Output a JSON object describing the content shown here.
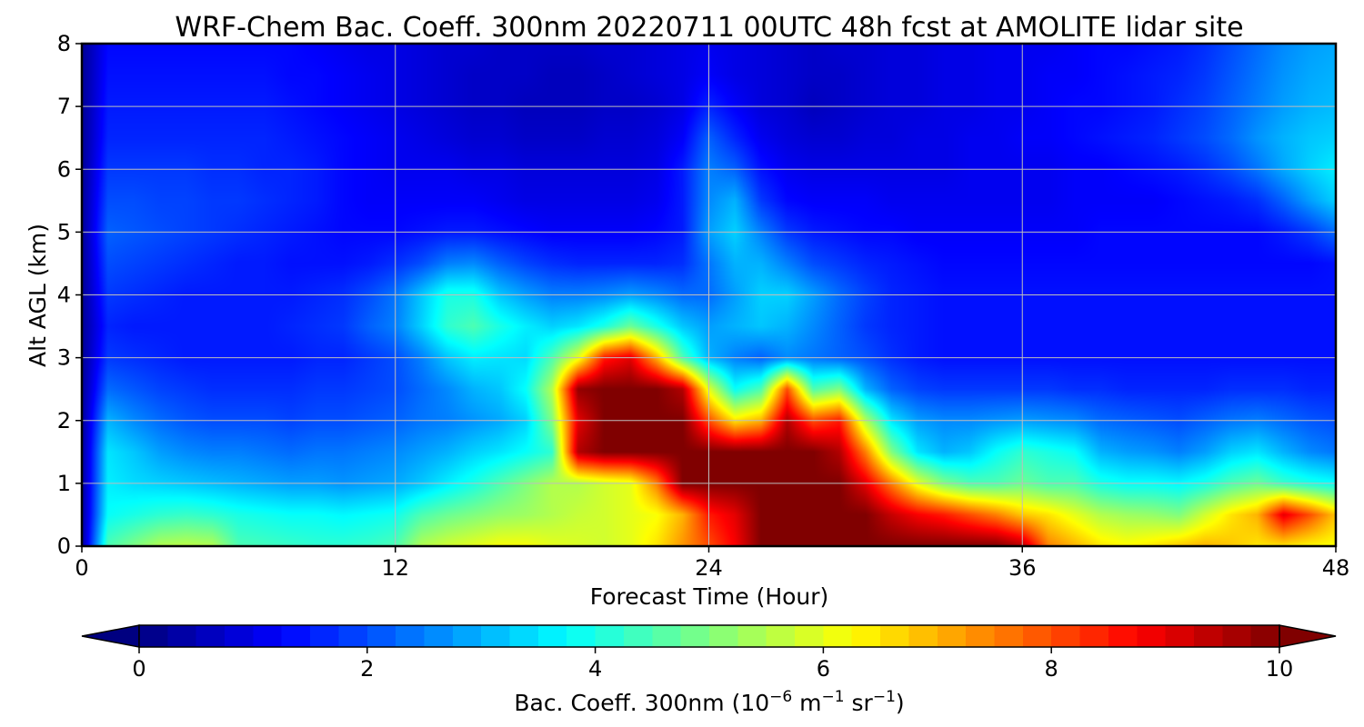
{
  "chart_data": {
    "type": "heatmap",
    "title": "WRF-Chem Bac. Coeff. 300nm  20220711 00UTC 48h fcst at AMOLITE lidar site",
    "xlabel": "Forecast Time (Hour)",
    "ylabel": "Alt AGL (km)",
    "xlim": [
      0,
      48
    ],
    "ylim": [
      0,
      8
    ],
    "xticks": [
      "0",
      "12",
      "24",
      "36",
      "48"
    ],
    "yticks": [
      "0",
      "1",
      "2",
      "3",
      "4",
      "5",
      "6",
      "7",
      "8"
    ],
    "grid": true,
    "colormap": "jet",
    "colorbar": {
      "orientation": "horizontal",
      "placement": "bottom",
      "range": [
        0,
        10
      ],
      "ticks": [
        "0",
        "2",
        "4",
        "6",
        "8",
        "10"
      ],
      "extend": "both",
      "label_main": "Bac. Coeff. 300nm  (10",
      "label_exp1": "−6",
      "label_mid": " m",
      "label_exp2": "−1",
      "label_mid2": " sr",
      "label_exp3": "−1",
      "label_end": ")"
    },
    "x_hours": [
      0,
      1,
      2,
      3,
      4,
      5,
      6,
      7,
      8,
      9,
      10,
      11,
      12,
      13,
      14,
      15,
      16,
      17,
      18,
      19,
      20,
      21,
      22,
      23,
      24,
      25,
      26,
      27,
      28,
      29,
      30,
      31,
      32,
      33,
      34,
      35,
      36,
      37,
      38,
      39,
      40,
      41,
      42,
      43,
      44,
      45,
      46,
      47,
      48
    ],
    "y_km": [
      0,
      0.5,
      1,
      1.5,
      2,
      2.5,
      3,
      3.5,
      4,
      4.5,
      5,
      5.5,
      6,
      6.5,
      7,
      7.5,
      8
    ],
    "values_by_altitude": [
      [
        0.2,
        4.5,
        5.0,
        5.5,
        5.6,
        5.5,
        4.5,
        4.4,
        4.3,
        4.2,
        4.2,
        4.3,
        4.5,
        5.5,
        5.8,
        6.0,
        6.2,
        6.2,
        6.0,
        5.9,
        5.8,
        6.0,
        6.5,
        7.3,
        8.0,
        8.8,
        10.0,
        10.0,
        10.0,
        10.0,
        10.0,
        10.0,
        10.0,
        10.0,
        10.0,
        10.0,
        9.5,
        7.5,
        7.0,
        6.5,
        6.3,
        6.5,
        6.8,
        7.0,
        6.8,
        6.5,
        6.5,
        6.3,
        6.2
      ],
      [
        0.2,
        3.8,
        4.0,
        4.2,
        4.3,
        4.2,
        4.0,
        3.9,
        3.8,
        3.8,
        3.7,
        3.8,
        3.9,
        4.5,
        4.8,
        5.0,
        5.2,
        5.3,
        5.5,
        5.7,
        5.8,
        6.0,
        6.2,
        7.0,
        8.5,
        9.0,
        10.0,
        10.0,
        10.0,
        10.0,
        10.0,
        9.3,
        8.8,
        8.5,
        8.0,
        7.5,
        6.8,
        6.5,
        6.0,
        5.5,
        5.3,
        5.2,
        5.0,
        5.8,
        6.5,
        7.0,
        9.0,
        8.0,
        6.8
      ],
      [
        0.2,
        3.6,
        3.4,
        3.3,
        3.2,
        3.1,
        3.0,
        2.9,
        2.8,
        2.8,
        2.7,
        2.8,
        2.9,
        3.2,
        3.6,
        4.0,
        4.5,
        5.0,
        5.5,
        5.5,
        5.8,
        6.0,
        7.5,
        10.0,
        10.0,
        10.0,
        10.0,
        10.0,
        10.0,
        10.0,
        9.0,
        7.5,
        6.0,
        5.0,
        4.5,
        4.5,
        4.8,
        4.5,
        4.5,
        4.0,
        3.8,
        3.8,
        3.7,
        4.0,
        4.5,
        4.8,
        4.3,
        4.0,
        3.8
      ],
      [
        0.2,
        3.5,
        3.2,
        2.8,
        2.6,
        2.5,
        2.5,
        2.4,
        2.3,
        2.4,
        2.4,
        2.5,
        2.6,
        2.8,
        3.0,
        3.3,
        3.5,
        3.8,
        4.2,
        9.5,
        10.0,
        10.0,
        10.0,
        10.0,
        10.0,
        10.0,
        10.0,
        10.0,
        10.0,
        9.5,
        7.5,
        5.0,
        3.5,
        3.0,
        3.2,
        3.8,
        4.2,
        4.0,
        3.8,
        3.0,
        2.8,
        2.7,
        2.5,
        2.8,
        3.3,
        3.5,
        3.0,
        2.6,
        2.4
      ],
      [
        0.2,
        3.0,
        2.6,
        2.3,
        2.1,
        2.0,
        2.0,
        2.0,
        1.9,
        2.0,
        2.0,
        2.1,
        2.2,
        2.4,
        2.5,
        2.7,
        2.9,
        3.3,
        5.0,
        9.0,
        10.0,
        10.0,
        10.0,
        10.0,
        8.0,
        6.5,
        7.0,
        9.5,
        8.0,
        8.5,
        5.5,
        3.5,
        2.8,
        2.6,
        2.6,
        2.7,
        2.8,
        2.7,
        2.6,
        2.3,
        2.2,
        2.1,
        2.0,
        2.2,
        2.4,
        2.5,
        2.3,
        2.1,
        2.0
      ],
      [
        0.2,
        2.3,
        2.1,
        1.9,
        1.8,
        1.7,
        1.7,
        1.7,
        1.7,
        1.8,
        1.8,
        1.9,
        2.0,
        2.3,
        2.6,
        3.0,
        3.2,
        3.8,
        5.5,
        9.8,
        10.0,
        10.0,
        10.0,
        9.5,
        6.0,
        3.8,
        4.5,
        8.0,
        4.5,
        5.0,
        3.0,
        2.2,
        1.9,
        1.8,
        1.8,
        1.8,
        1.8,
        1.8,
        1.7,
        1.7,
        1.6,
        1.6,
        1.6,
        1.6,
        1.7,
        1.7,
        1.7,
        1.6,
        1.6
      ],
      [
        0.2,
        1.8,
        1.7,
        1.6,
        1.5,
        1.5,
        1.5,
        1.5,
        1.5,
        1.6,
        1.6,
        1.8,
        2.0,
        2.5,
        3.2,
        3.6,
        3.5,
        3.4,
        4.5,
        6.0,
        8.5,
        9.0,
        7.0,
        4.5,
        3.0,
        2.5,
        2.2,
        2.6,
        2.4,
        2.2,
        2.0,
        1.7,
        1.5,
        1.4,
        1.4,
        1.4,
        1.4,
        1.4,
        1.4,
        1.4,
        1.4,
        1.4,
        1.4,
        1.4,
        1.4,
        1.4,
        1.4,
        1.4,
        1.4
      ],
      [
        0.2,
        1.6,
        1.5,
        1.5,
        1.5,
        1.5,
        1.5,
        1.5,
        1.6,
        1.7,
        1.8,
        2.2,
        2.5,
        3.3,
        4.2,
        4.5,
        4.0,
        3.6,
        3.3,
        3.5,
        4.0,
        4.8,
        4.0,
        3.2,
        2.8,
        3.0,
        3.2,
        3.0,
        2.6,
        2.2,
        1.8,
        1.6,
        1.5,
        1.4,
        1.4,
        1.4,
        1.4,
        1.4,
        1.4,
        1.4,
        1.4,
        1.4,
        1.4,
        1.4,
        1.4,
        1.4,
        1.4,
        1.4,
        1.4
      ],
      [
        0.2,
        1.8,
        1.7,
        1.6,
        1.5,
        1.5,
        1.5,
        1.5,
        1.5,
        1.6,
        1.7,
        2.0,
        2.4,
        3.2,
        4.0,
        4.0,
        3.2,
        2.8,
        2.5,
        2.5,
        2.6,
        2.8,
        2.6,
        2.3,
        2.3,
        2.8,
        3.3,
        3.3,
        2.8,
        2.3,
        1.9,
        1.6,
        1.5,
        1.4,
        1.4,
        1.4,
        1.4,
        1.4,
        1.4,
        1.4,
        1.4,
        1.4,
        1.4,
        1.4,
        1.4,
        1.4,
        1.4,
        1.4,
        1.4
      ],
      [
        0.2,
        2.0,
        1.9,
        1.8,
        1.7,
        1.6,
        1.5,
        1.5,
        1.4,
        1.4,
        1.4,
        1.5,
        1.7,
        2.0,
        2.5,
        2.6,
        2.2,
        1.9,
        1.7,
        1.6,
        1.6,
        1.6,
        1.6,
        1.7,
        2.4,
        3.0,
        3.0,
        2.5,
        2.0,
        1.8,
        1.6,
        1.5,
        1.4,
        1.3,
        1.3,
        1.3,
        1.3,
        1.3,
        1.3,
        1.3,
        1.3,
        1.3,
        1.3,
        1.3,
        1.3,
        1.3,
        1.3,
        1.3,
        1.4
      ],
      [
        0.2,
        2.2,
        2.1,
        2.0,
        1.9,
        1.8,
        1.7,
        1.6,
        1.5,
        1.4,
        1.3,
        1.3,
        1.3,
        1.4,
        1.5,
        1.5,
        1.4,
        1.3,
        1.2,
        1.2,
        1.2,
        1.2,
        1.3,
        1.5,
        2.8,
        3.3,
        2.5,
        1.8,
        1.5,
        1.4,
        1.3,
        1.3,
        1.2,
        1.2,
        1.2,
        1.2,
        1.2,
        1.2,
        1.2,
        1.3,
        1.3,
        1.3,
        1.3,
        1.3,
        1.3,
        1.3,
        1.5,
        1.8,
        2.3
      ],
      [
        0.2,
        2.0,
        2.0,
        1.9,
        1.9,
        1.8,
        1.8,
        1.7,
        1.6,
        1.5,
        1.3,
        1.2,
        1.2,
        1.2,
        1.2,
        1.2,
        1.1,
        1.0,
        1.0,
        1.0,
        1.0,
        1.0,
        1.1,
        1.5,
        2.6,
        3.0,
        1.8,
        1.3,
        1.2,
        1.2,
        1.2,
        1.1,
        1.1,
        1.1,
        1.1,
        1.1,
        1.1,
        1.1,
        1.2,
        1.2,
        1.2,
        1.2,
        1.3,
        1.4,
        1.5,
        1.7,
        2.2,
        2.8,
        3.3
      ],
      [
        0.2,
        1.8,
        1.8,
        1.8,
        1.8,
        1.7,
        1.7,
        1.6,
        1.6,
        1.5,
        1.3,
        1.2,
        1.1,
        1.1,
        1.1,
        1.0,
        1.0,
        0.9,
        0.9,
        0.9,
        0.9,
        0.9,
        1.0,
        1.5,
        2.5,
        2.2,
        1.4,
        1.1,
        1.0,
        1.0,
        1.0,
        1.0,
        1.0,
        1.0,
        1.1,
        1.1,
        1.1,
        1.1,
        1.2,
        1.2,
        1.3,
        1.4,
        1.5,
        1.7,
        2.0,
        2.4,
        2.9,
        3.3,
        3.6
      ],
      [
        0.2,
        1.6,
        1.6,
        1.6,
        1.6,
        1.6,
        1.6,
        1.6,
        1.5,
        1.4,
        1.3,
        1.2,
        1.1,
        1.0,
        0.9,
        0.8,
        0.8,
        0.7,
        0.7,
        0.7,
        0.8,
        0.8,
        0.9,
        1.2,
        2.2,
        1.6,
        1.1,
        0.9,
        0.8,
        0.8,
        0.9,
        0.9,
        1.0,
        1.0,
        1.1,
        1.1,
        1.2,
        1.2,
        1.3,
        1.4,
        1.5,
        1.6,
        1.8,
        2.0,
        2.3,
        2.7,
        3.0,
        3.2,
        3.3
      ],
      [
        0.2,
        1.5,
        1.5,
        1.5,
        1.5,
        1.5,
        1.5,
        1.5,
        1.4,
        1.3,
        1.2,
        1.1,
        1.0,
        0.9,
        0.8,
        0.7,
        0.7,
        0.6,
        0.6,
        0.6,
        0.7,
        0.7,
        0.8,
        1.0,
        1.6,
        1.2,
        0.9,
        0.8,
        0.6,
        0.7,
        0.8,
        0.9,
        0.9,
        1.0,
        1.0,
        1.1,
        1.1,
        1.2,
        1.3,
        1.3,
        1.4,
        1.5,
        1.7,
        1.9,
        2.2,
        2.5,
        2.8,
        3.0,
        3.1
      ],
      [
        0.2,
        1.4,
        1.4,
        1.4,
        1.4,
        1.4,
        1.4,
        1.4,
        1.3,
        1.3,
        1.2,
        1.1,
        1.0,
        0.9,
        0.8,
        0.7,
        0.7,
        0.7,
        0.6,
        0.6,
        0.7,
        0.8,
        0.9,
        1.0,
        1.2,
        1.0,
        0.9,
        0.8,
        0.7,
        0.7,
        0.8,
        0.9,
        0.9,
        1.0,
        1.0,
        1.1,
        1.1,
        1.2,
        1.2,
        1.3,
        1.4,
        1.5,
        1.6,
        1.8,
        2.1,
        2.4,
        2.7,
        2.9,
        3.0
      ],
      [
        0.2,
        1.3,
        1.3,
        1.3,
        1.3,
        1.3,
        1.3,
        1.3,
        1.3,
        1.2,
        1.1,
        1.0,
        1.0,
        0.9,
        0.8,
        0.8,
        0.7,
        0.7,
        0.7,
        0.7,
        0.8,
        0.8,
        0.9,
        1.0,
        1.1,
        1.0,
        0.9,
        0.8,
        0.7,
        0.8,
        0.8,
        0.9,
        0.9,
        1.0,
        1.0,
        1.1,
        1.1,
        1.1,
        1.2,
        1.3,
        1.3,
        1.4,
        1.5,
        1.7,
        2.0,
        2.3,
        2.6,
        2.8,
        2.9
      ]
    ]
  }
}
